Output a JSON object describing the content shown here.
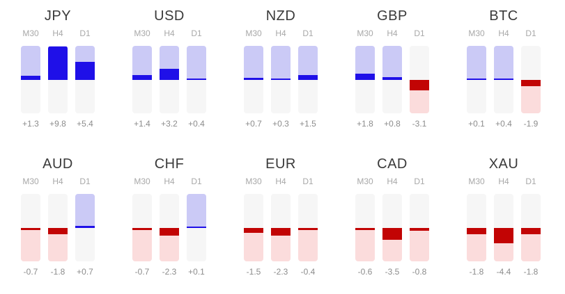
{
  "widget": {
    "name": "currency-strength-meter",
    "rows": 2,
    "columns_per_row": 5
  },
  "colors": {
    "positive_fill": "#1f10e8",
    "positive_track": "#cbcaf6",
    "negative_fill": "#c20404",
    "negative_track": "#fbdcdc",
    "neutral_track": "#f6f6f6",
    "title_text": "#3a3a3a",
    "timeframe_text": "#a8a8a8",
    "value_text": "#8c8c8c",
    "background": "#ffffff"
  },
  "chart_data": {
    "type": "bar",
    "title": "",
    "subtitle": "",
    "layout": "10 small-multiple vertical gauge panels (2 rows x 5 columns), each with 3 bipolar bars anchored at a zero midline; blue fills upward for positive strength, red fills downward for negative strength",
    "categories": [
      "M30",
      "H4",
      "D1"
    ],
    "ylim": [
      -10,
      10
    ],
    "grid": false,
    "legend": false,
    "series": [
      {
        "name": "JPY",
        "values": [
          1.3,
          9.8,
          5.4
        ],
        "labels": [
          "+1.3",
          "+9.8",
          "+5.4"
        ]
      },
      {
        "name": "USD",
        "values": [
          1.4,
          3.2,
          0.4
        ],
        "labels": [
          "+1.4",
          "+3.2",
          "+0.4"
        ]
      },
      {
        "name": "NZD",
        "values": [
          0.7,
          0.3,
          1.5
        ],
        "labels": [
          "+0.7",
          "+0.3",
          "+1.5"
        ]
      },
      {
        "name": "GBP",
        "values": [
          1.8,
          0.8,
          -3.1
        ],
        "labels": [
          "+1.8",
          "+0.8",
          "-3.1"
        ]
      },
      {
        "name": "BTC",
        "values": [
          0.1,
          0.4,
          -1.9
        ],
        "labels": [
          "+0.1",
          "+0.4",
          "-1.9"
        ]
      },
      {
        "name": "AUD",
        "values": [
          -0.7,
          -1.8,
          0.7
        ],
        "labels": [
          "-0.7",
          "-1.8",
          "+0.7"
        ]
      },
      {
        "name": "CHF",
        "values": [
          -0.7,
          -2.3,
          0.1
        ],
        "labels": [
          "-0.7",
          "-2.3",
          "+0.1"
        ]
      },
      {
        "name": "EUR",
        "values": [
          -1.5,
          -2.3,
          -0.4
        ],
        "labels": [
          "-1.5",
          "-2.3",
          "-0.4"
        ]
      },
      {
        "name": "CAD",
        "values": [
          -0.6,
          -3.5,
          -0.8
        ],
        "labels": [
          "-0.6",
          "-3.5",
          "-0.8"
        ]
      },
      {
        "name": "XAU",
        "values": [
          -1.8,
          -4.4,
          -1.8
        ],
        "labels": [
          "-1.8",
          "-4.4",
          "-1.8"
        ]
      }
    ]
  }
}
